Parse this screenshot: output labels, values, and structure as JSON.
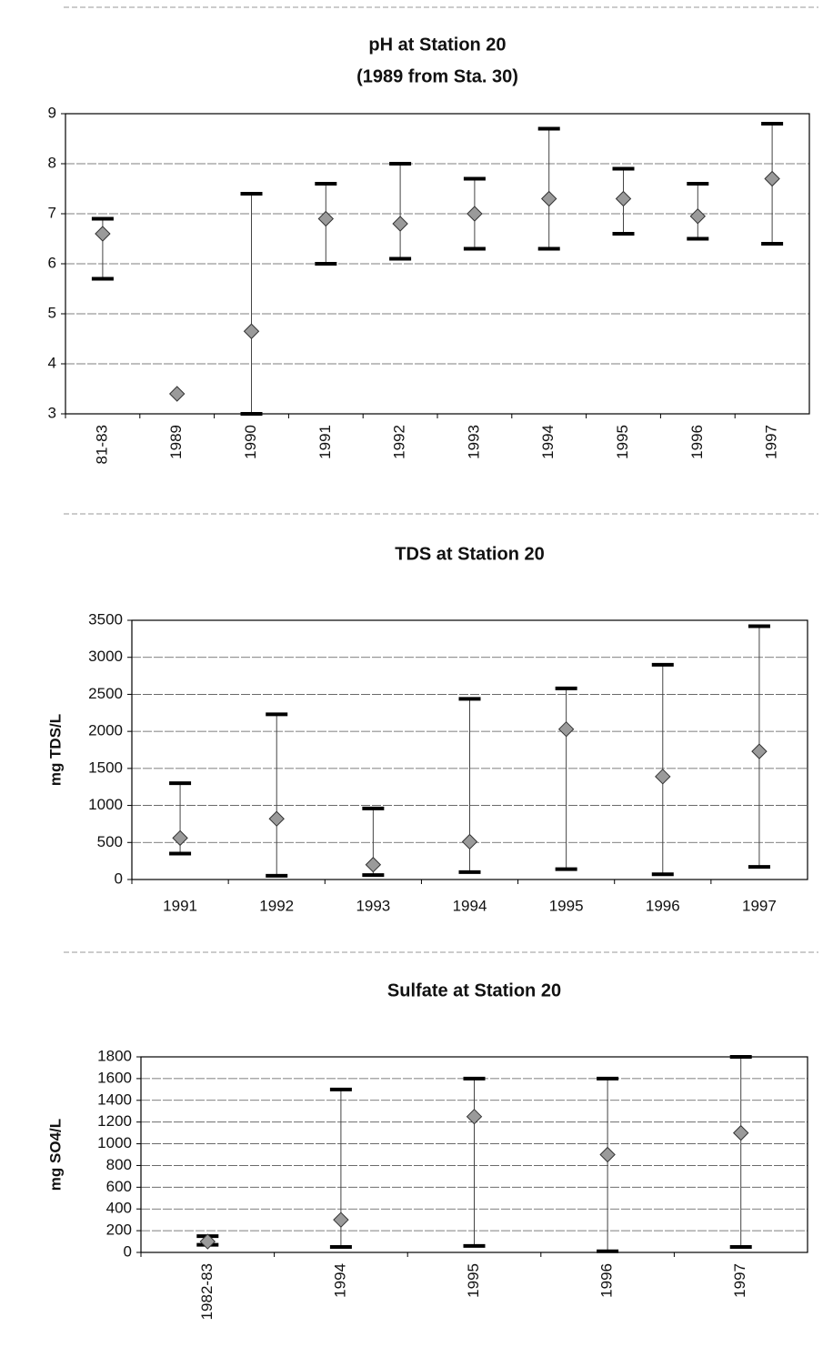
{
  "chart_data": [
    {
      "type": "hilo",
      "title": "pH at Station 20",
      "subtitle": "(1989 from Sta. 30)",
      "categories": [
        "81-83",
        "1989",
        "1990",
        "1991",
        "1992",
        "1993",
        "1994",
        "1995",
        "1996",
        "1997"
      ],
      "values": [
        6.6,
        3.4,
        4.65,
        6.9,
        6.8,
        7.0,
        7.3,
        7.3,
        6.95,
        7.7
      ],
      "low": [
        5.7,
        null,
        3.0,
        6.0,
        6.1,
        6.3,
        6.3,
        6.6,
        6.5,
        6.4
      ],
      "high": [
        6.9,
        null,
        7.4,
        7.6,
        8.0,
        7.7,
        8.7,
        7.9,
        7.6,
        8.8
      ],
      "ylim": [
        3,
        9
      ],
      "yticks": [
        3,
        4,
        5,
        6,
        7,
        8,
        9
      ],
      "grid": true,
      "rotate_labels": true,
      "color": "#9a9a9a"
    },
    {
      "type": "hilo",
      "title": "TDS at Station 20",
      "ylabel": "mg TDS/L",
      "categories": [
        "1991",
        "1992",
        "1993",
        "1994",
        "1995",
        "1996",
        "1997"
      ],
      "values": [
        560,
        820,
        200,
        510,
        2030,
        1390,
        1730
      ],
      "low": [
        350,
        50,
        60,
        100,
        140,
        70,
        170
      ],
      "high": [
        1300,
        2230,
        960,
        2440,
        2580,
        2900,
        3420
      ],
      "ylim": [
        0,
        3500
      ],
      "yticks": [
        0,
        500,
        1000,
        1500,
        2000,
        2500,
        3000,
        3500
      ],
      "grid": true,
      "rotate_labels": false,
      "color": "#9a9a9a"
    },
    {
      "type": "hilo",
      "title": "Sulfate at Station 20",
      "ylabel": "mg SO4/L",
      "categories": [
        "1982-83",
        "1994",
        "1995",
        "1996",
        "1997"
      ],
      "values": [
        100,
        300,
        1250,
        900,
        1100
      ],
      "low": [
        70,
        50,
        60,
        10,
        50
      ],
      "high": [
        150,
        1500,
        1600,
        1600,
        1800
      ],
      "ylim": [
        0,
        1800
      ],
      "yticks": [
        0,
        200,
        400,
        600,
        800,
        1000,
        1200,
        1400,
        1600,
        1800
      ],
      "grid": true,
      "rotate_labels": true,
      "color": "#9a9a9a"
    }
  ]
}
